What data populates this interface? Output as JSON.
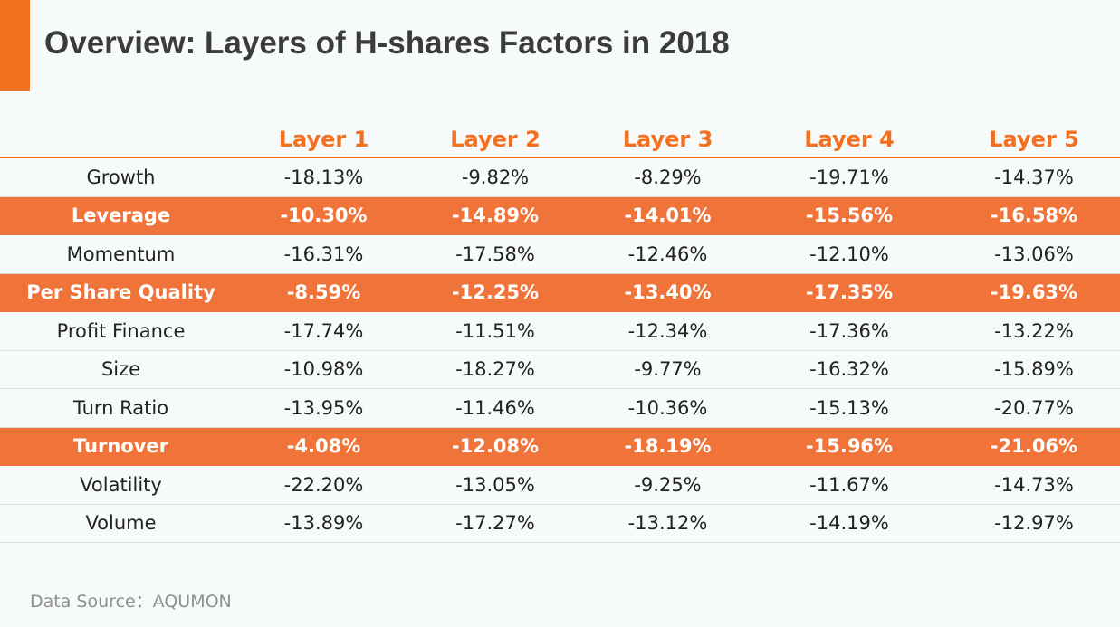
{
  "title": "Overview: Layers of H-shares Factors in 2018",
  "colors": {
    "accent": "#f37021",
    "highlight_row": "#f0743a",
    "background": "#f7fafb"
  },
  "source": "Data Source：AQUMON",
  "chart_data": {
    "type": "table",
    "title": "Overview: Layers of H-shares Factors in 2018",
    "columns": [
      "",
      "Layer 1",
      "Layer 2",
      "Layer 3",
      "Layer 4",
      "Layer 5"
    ],
    "rows": [
      {
        "label": "Growth",
        "highlight": false,
        "values": [
          "-18.13%",
          "-9.82%",
          "-8.29%",
          "-19.71%",
          "-14.37%"
        ]
      },
      {
        "label": "Leverage",
        "highlight": true,
        "values": [
          "-10.30%",
          "-14.89%",
          "-14.01%",
          "-15.56%",
          "-16.58%"
        ]
      },
      {
        "label": "Momentum",
        "highlight": false,
        "values": [
          "-16.31%",
          "-17.58%",
          "-12.46%",
          "-12.10%",
          "-13.06%"
        ]
      },
      {
        "label": "Per Share Quality",
        "highlight": true,
        "values": [
          "-8.59%",
          "-12.25%",
          "-13.40%",
          "-17.35%",
          "-19.63%"
        ]
      },
      {
        "label": "Profit Finance",
        "highlight": false,
        "values": [
          "-17.74%",
          "-11.51%",
          "-12.34%",
          "-17.36%",
          "-13.22%"
        ]
      },
      {
        "label": "Size",
        "highlight": false,
        "values": [
          "-10.98%",
          "-18.27%",
          "-9.77%",
          "-16.32%",
          "-15.89%"
        ]
      },
      {
        "label": "Turn Ratio",
        "highlight": false,
        "values": [
          "-13.95%",
          "-11.46%",
          "-10.36%",
          "-15.13%",
          "-20.77%"
        ]
      },
      {
        "label": "Turnover",
        "highlight": true,
        "values": [
          "-4.08%",
          "-12.08%",
          "-18.19%",
          "-15.96%",
          "-21.06%"
        ]
      },
      {
        "label": "Volatility",
        "highlight": false,
        "values": [
          "-22.20%",
          "-13.05%",
          "-9.25%",
          "-11.67%",
          "-14.73%"
        ]
      },
      {
        "label": "Volume",
        "highlight": false,
        "values": [
          "-13.89%",
          "-17.27%",
          "-13.12%",
          "-14.19%",
          "-12.97%"
        ]
      }
    ]
  }
}
